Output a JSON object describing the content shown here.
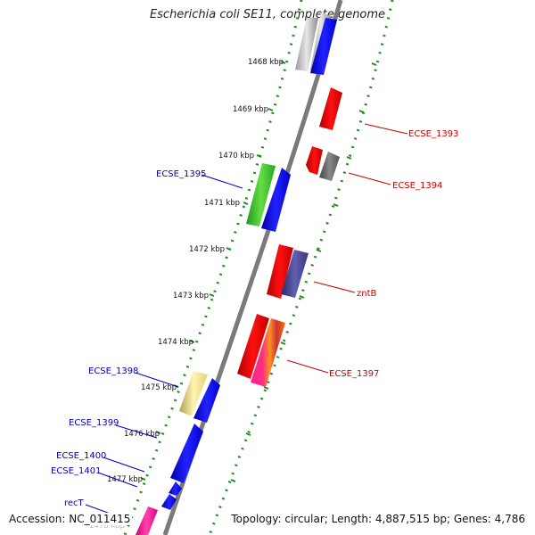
{
  "title": "Escherichia coli SE11, complete genome",
  "footer": {
    "accession": "Accession: NC_011415",
    "topology": "Topology: circular; Length: 4,887,515 bp; Genes: 4,786"
  },
  "colors": {
    "backbone": "#808080",
    "dotted_ring": "#2a8a2a",
    "forward_label": "#0000bb",
    "reverse_label": "#cc0000"
  },
  "kbp_ticks": [
    {
      "kbp": 1468,
      "label": "1468 kbp"
    },
    {
      "kbp": 1469,
      "label": "1469 kbp"
    },
    {
      "kbp": 1470,
      "label": "1470 kbp"
    },
    {
      "kbp": 1471,
      "label": "1471 kbp"
    },
    {
      "kbp": 1472,
      "label": "1472 kbp"
    },
    {
      "kbp": 1473,
      "label": "1473 kbp"
    },
    {
      "kbp": 1474,
      "label": "1474 kbp"
    },
    {
      "kbp": 1475,
      "label": "1475 kbp"
    },
    {
      "kbp": 1476,
      "label": "1476 kbp"
    },
    {
      "kbp": 1477,
      "label": "1477 kbp"
    },
    {
      "kbp": 1478,
      "label": "1478 kbp"
    }
  ],
  "gene_labels": [
    {
      "name": "ECSE_1393",
      "strand": "reverse"
    },
    {
      "name": "ECSE_1394",
      "strand": "reverse"
    },
    {
      "name": "ECSE_1395",
      "strand": "forward"
    },
    {
      "name": "zntB",
      "strand": "reverse"
    },
    {
      "name": "ECSE_1397",
      "strand": "reverse"
    },
    {
      "name": "ECSE_1398",
      "strand": "forward"
    },
    {
      "name": "ECSE_1399",
      "strand": "forward"
    },
    {
      "name": "ECSE_1400",
      "strand": "forward"
    },
    {
      "name": "ECSE_1401",
      "strand": "forward"
    },
    {
      "name": "recT",
      "strand": "forward"
    }
  ]
}
